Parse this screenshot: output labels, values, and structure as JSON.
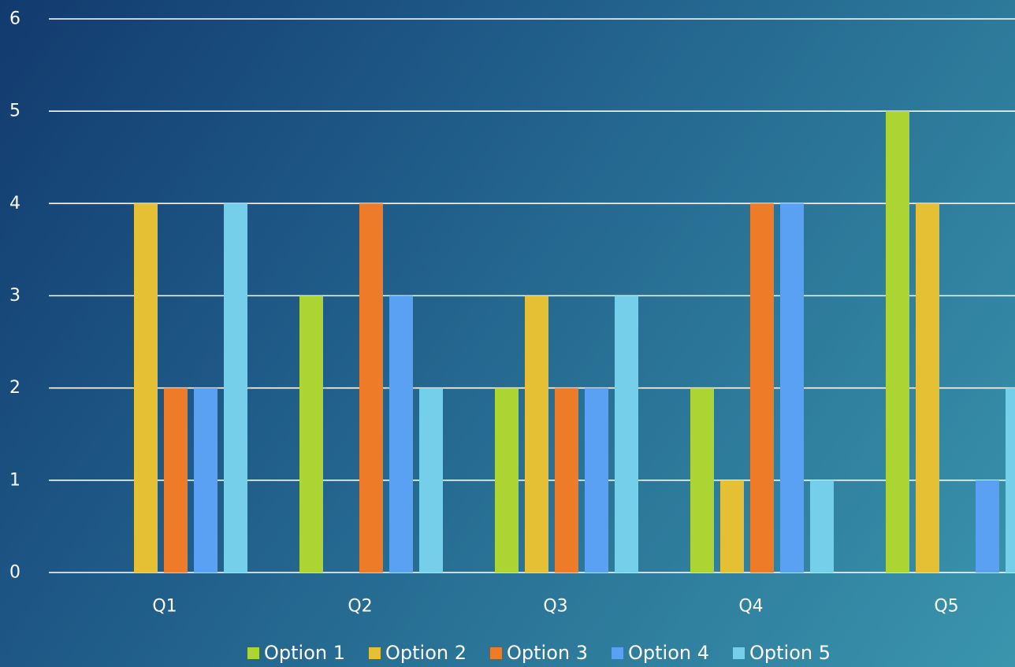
{
  "chart_data": {
    "type": "bar",
    "title": "",
    "xlabel": "",
    "ylabel": "",
    "categories": [
      "Q1",
      "Q2",
      "Q3",
      "Q4",
      "Q5"
    ],
    "ylim": [
      0,
      6
    ],
    "yticks": [
      0,
      1,
      2,
      3,
      4,
      5,
      6
    ],
    "grid": true,
    "legend_position": "bottom",
    "series": [
      {
        "name": "Option 1",
        "color": "#acd433",
        "values": [
          0,
          3,
          2,
          2,
          5
        ]
      },
      {
        "name": "Option 2",
        "color": "#e5c035",
        "values": [
          4,
          0,
          3,
          1,
          4
        ]
      },
      {
        "name": "Option 3",
        "color": "#ee7b27",
        "values": [
          2,
          4,
          2,
          4,
          0
        ]
      },
      {
        "name": "Option 4",
        "color": "#5aa1f4",
        "values": [
          2,
          3,
          2,
          4,
          1
        ]
      },
      {
        "name": "Option 5",
        "color": "#76cfea",
        "values": [
          4,
          2,
          3,
          1,
          2
        ]
      }
    ]
  }
}
